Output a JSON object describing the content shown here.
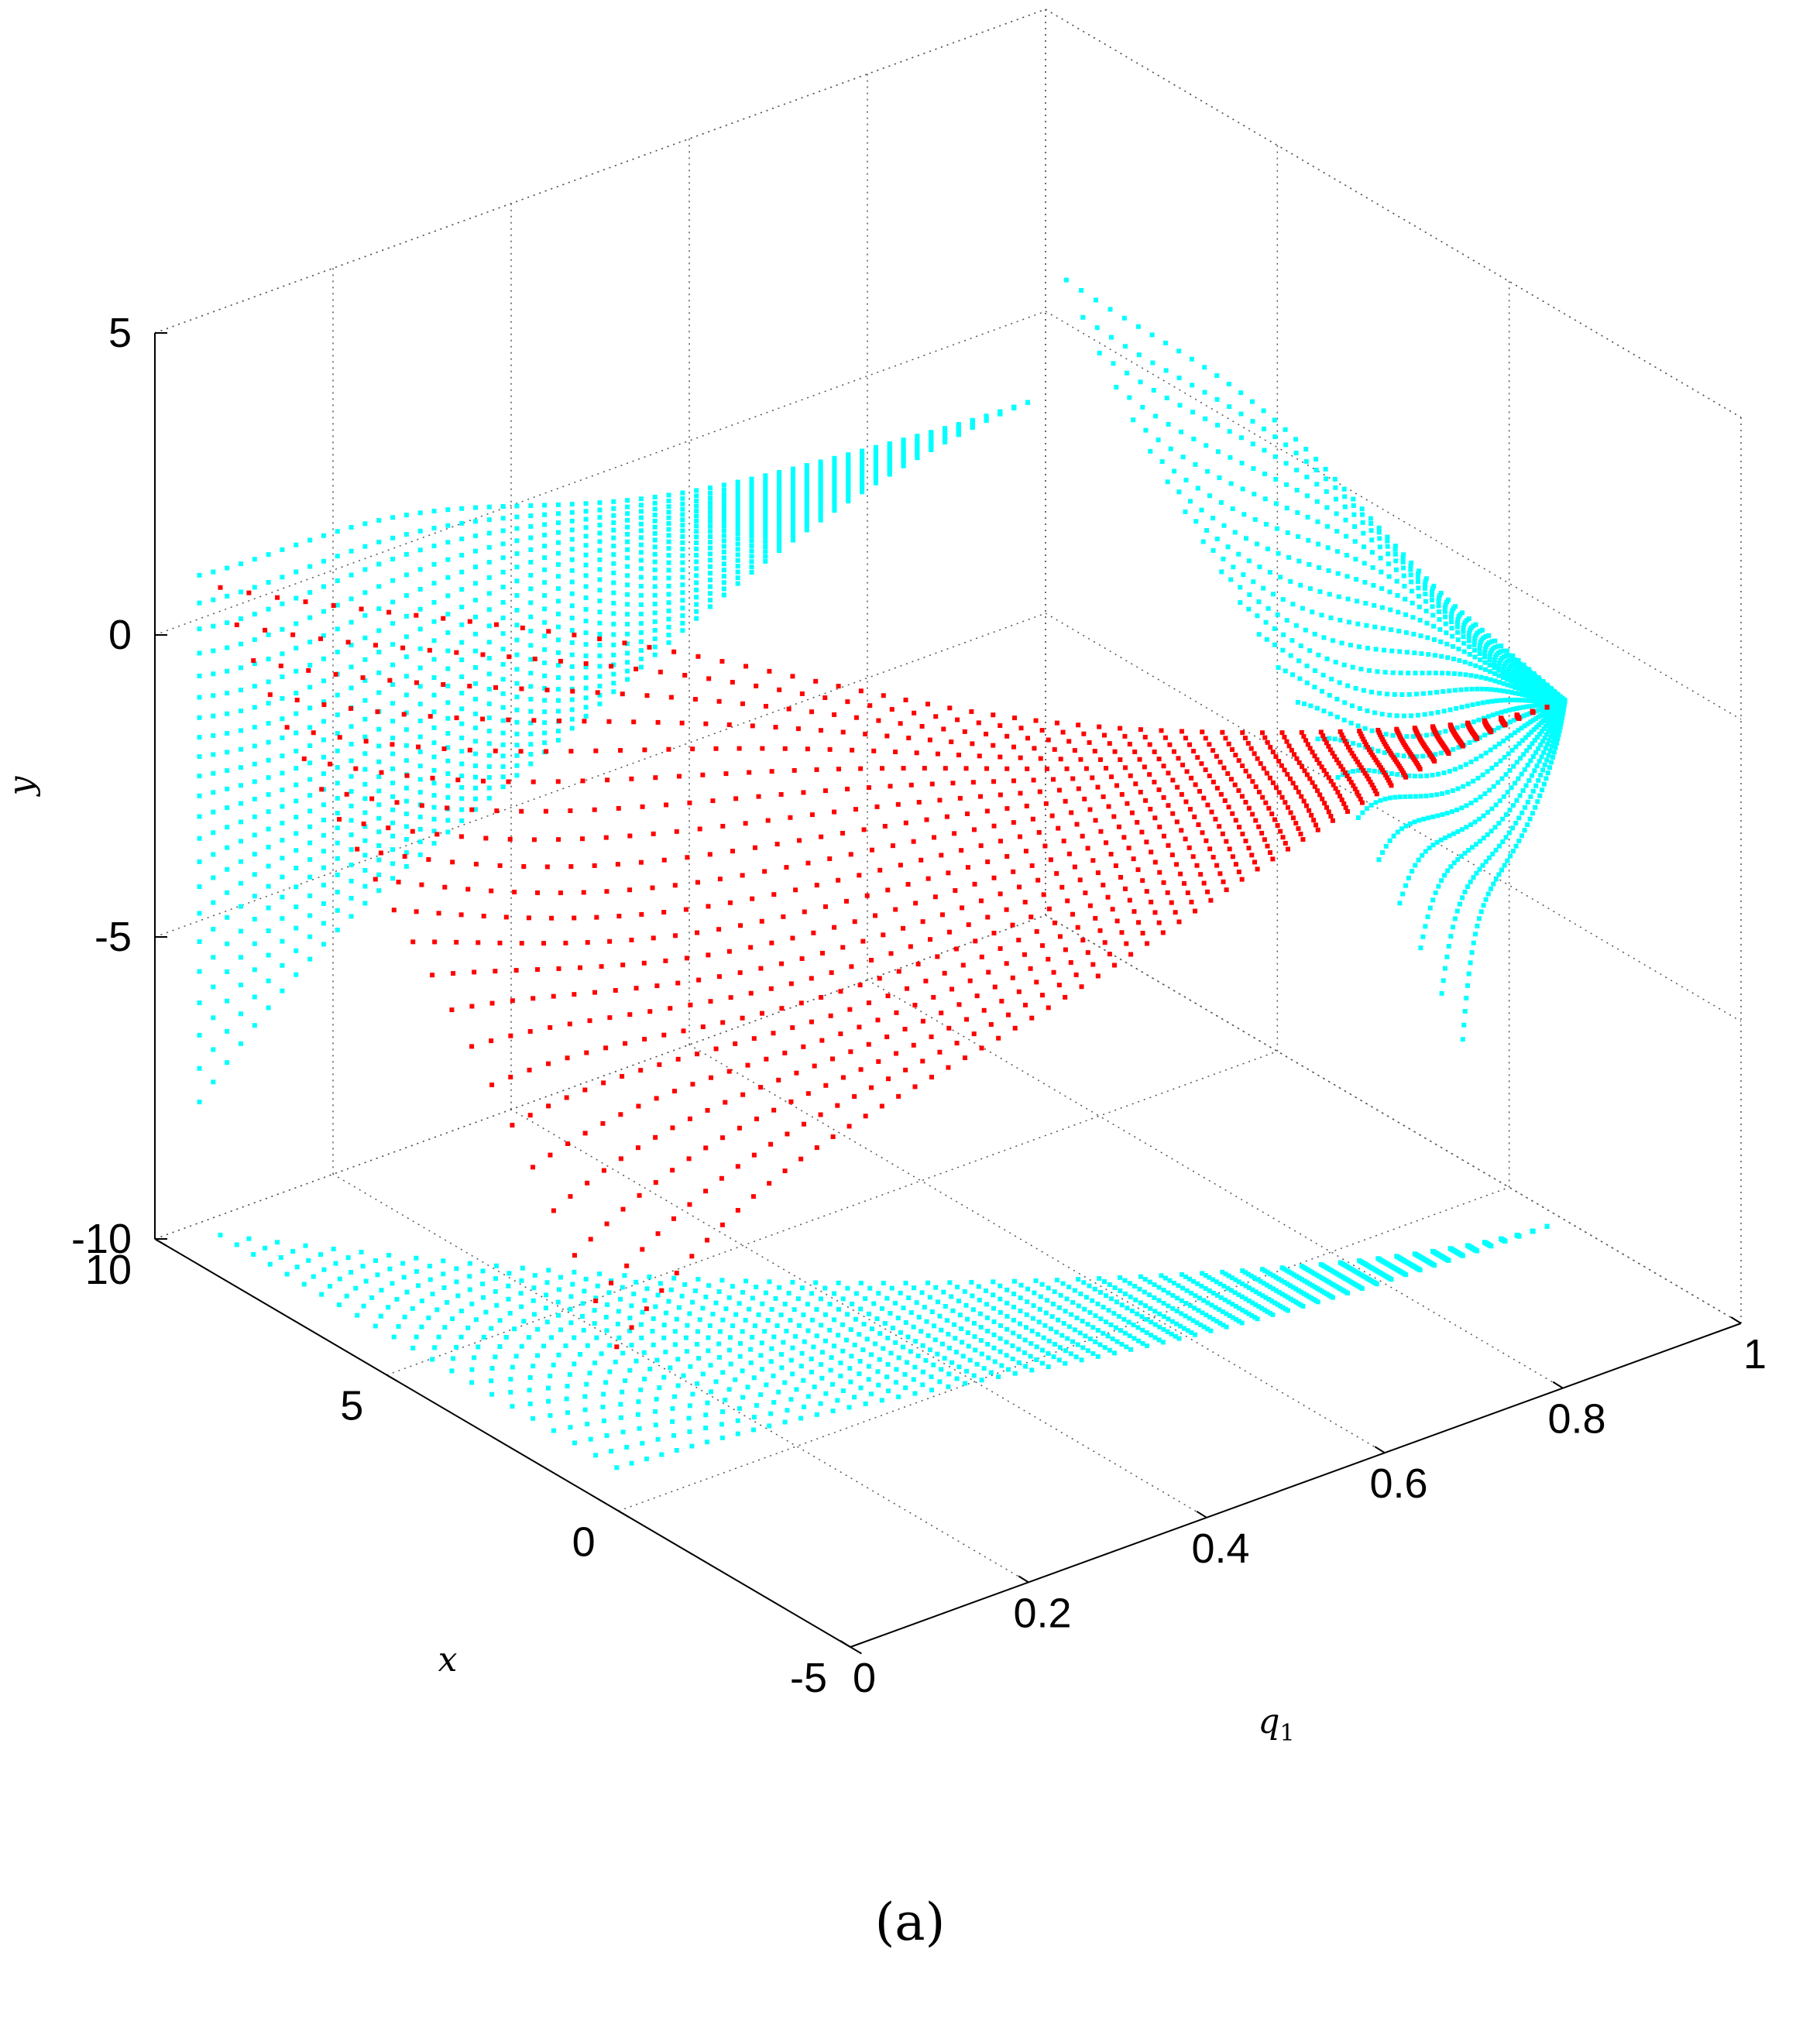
{
  "chart_data": {
    "type": "scatter",
    "projection": "3d",
    "xlabel": "x",
    "ylabel": "y",
    "zlabel": "q",
    "zlabel_subscript": "1",
    "caption": "(a)",
    "x_ticks": [
      "-5",
      "0",
      "5",
      "10"
    ],
    "y_ticks": [
      "-10",
      "-5",
      "0",
      "5"
    ],
    "q_ticks": [
      "0",
      "0.2",
      "0.4",
      "0.6",
      "0.8",
      "1"
    ],
    "x_range": [
      -5,
      10
    ],
    "y_range": [
      -10,
      5
    ],
    "q_range": [
      0,
      1
    ],
    "grid": true,
    "series": [
      {
        "role": "trajectories",
        "color": "#ff0000",
        "marker": "+"
      },
      {
        "role": "projections",
        "color": "#00ffff",
        "marker": "+"
      }
    ]
  }
}
